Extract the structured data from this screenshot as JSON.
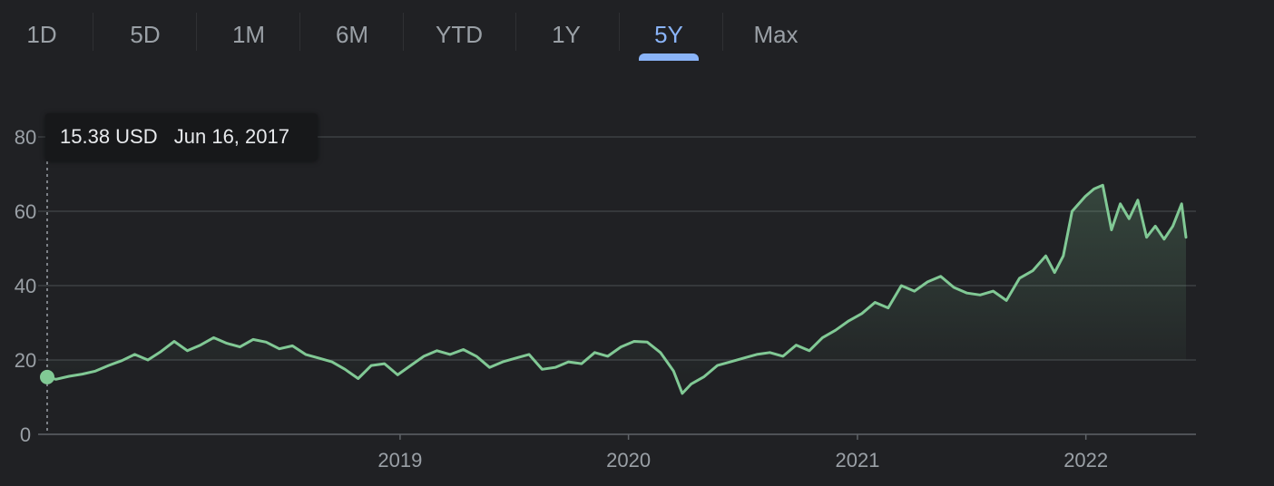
{
  "tabs": [
    {
      "label": "1D",
      "active": false
    },
    {
      "label": "5D",
      "active": false
    },
    {
      "label": "1M",
      "active": false
    },
    {
      "label": "6M",
      "active": false
    },
    {
      "label": "YTD",
      "active": false
    },
    {
      "label": "1Y",
      "active": false
    },
    {
      "label": "5Y",
      "active": true
    },
    {
      "label": "Max",
      "active": false
    }
  ],
  "tooltip": {
    "price": "15.38 USD",
    "date": "Jun 16, 2017"
  },
  "colors": {
    "line": "#81c995",
    "accent": "#8ab4f8",
    "background": "#202124"
  },
  "chart_data": {
    "type": "area",
    "x_start": "2017-06-16",
    "x_end": "2022-06-10",
    "ylim": [
      0,
      80
    ],
    "yticks": [
      0,
      20,
      40,
      60,
      80
    ],
    "xticks": [
      {
        "label": "2019",
        "date": "2019-01-01"
      },
      {
        "label": "2020",
        "date": "2020-01-01"
      },
      {
        "label": "2021",
        "date": "2021-01-01"
      },
      {
        "label": "2022",
        "date": "2022-01-01"
      }
    ],
    "grid": true,
    "series": [
      {
        "x": [
          "2017-06-16",
          "2017-06-30",
          "2017-07-21",
          "2017-08-11",
          "2017-09-01",
          "2017-09-22",
          "2017-10-13",
          "2017-11-03",
          "2017-11-24",
          "2017-12-15",
          "2018-01-05",
          "2018-01-26",
          "2018-02-16",
          "2018-03-09",
          "2018-03-30",
          "2018-04-20",
          "2018-05-11",
          "2018-06-01",
          "2018-06-22",
          "2018-07-13",
          "2018-08-03",
          "2018-08-24",
          "2018-09-14",
          "2018-10-05",
          "2018-10-26",
          "2018-11-16",
          "2018-12-07",
          "2018-12-28",
          "2019-01-18",
          "2019-02-08",
          "2019-03-01",
          "2019-03-22",
          "2019-04-12",
          "2019-05-03",
          "2019-05-24",
          "2019-06-14",
          "2019-07-05",
          "2019-07-26",
          "2019-08-16",
          "2019-09-06",
          "2019-09-27",
          "2019-10-18",
          "2019-11-08",
          "2019-11-29",
          "2019-12-20",
          "2020-01-10",
          "2020-01-31",
          "2020-02-21",
          "2020-03-13",
          "2020-03-27",
          "2020-04-10",
          "2020-05-01",
          "2020-05-22",
          "2020-06-12",
          "2020-07-03",
          "2020-07-24",
          "2020-08-14",
          "2020-09-04",
          "2020-09-25",
          "2020-10-16",
          "2020-11-06",
          "2020-11-27",
          "2020-12-18",
          "2021-01-08",
          "2021-01-29",
          "2021-02-19",
          "2021-03-12",
          "2021-04-02",
          "2021-04-23",
          "2021-05-14",
          "2021-06-04",
          "2021-06-25",
          "2021-07-16",
          "2021-08-06",
          "2021-08-27",
          "2021-09-17",
          "2021-10-08",
          "2021-10-29",
          "2021-11-12",
          "2021-11-26",
          "2021-12-10",
          "2021-12-31",
          "2022-01-14",
          "2022-01-28",
          "2022-02-11",
          "2022-02-25",
          "2022-03-11",
          "2022-03-25",
          "2022-04-08",
          "2022-04-22",
          "2022-05-06",
          "2022-05-20",
          "2022-06-03",
          "2022-06-10"
        ],
        "y": [
          15.4,
          14.8,
          15.6,
          16.2,
          17.0,
          18.5,
          19.8,
          21.5,
          20.0,
          22.3,
          25.0,
          22.5,
          24.0,
          26.0,
          24.5,
          23.5,
          25.5,
          24.8,
          23.0,
          23.8,
          21.5,
          20.5,
          19.5,
          17.5,
          15.0,
          18.5,
          19.0,
          16.0,
          18.5,
          21.0,
          22.5,
          21.5,
          22.8,
          21.0,
          18.0,
          19.5,
          20.5,
          21.5,
          17.5,
          18.0,
          19.5,
          19.0,
          22.0,
          21.0,
          23.5,
          25.0,
          24.8,
          22.0,
          17.0,
          11.0,
          13.5,
          15.5,
          18.5,
          19.5,
          20.5,
          21.5,
          22.0,
          21.0,
          24.0,
          22.5,
          26.0,
          28.0,
          30.5,
          32.5,
          35.5,
          34.0,
          40.0,
          38.5,
          41.0,
          42.5,
          39.5,
          38.0,
          37.5,
          38.5,
          36.0,
          42.0,
          44.0,
          48.0,
          43.5,
          48.0,
          60.0,
          64.0,
          66.0,
          67.0,
          55.0,
          62.0,
          58.0,
          63.0,
          53.0,
          56.0,
          52.5,
          56.0,
          62.0,
          53.0
        ]
      }
    ]
  }
}
